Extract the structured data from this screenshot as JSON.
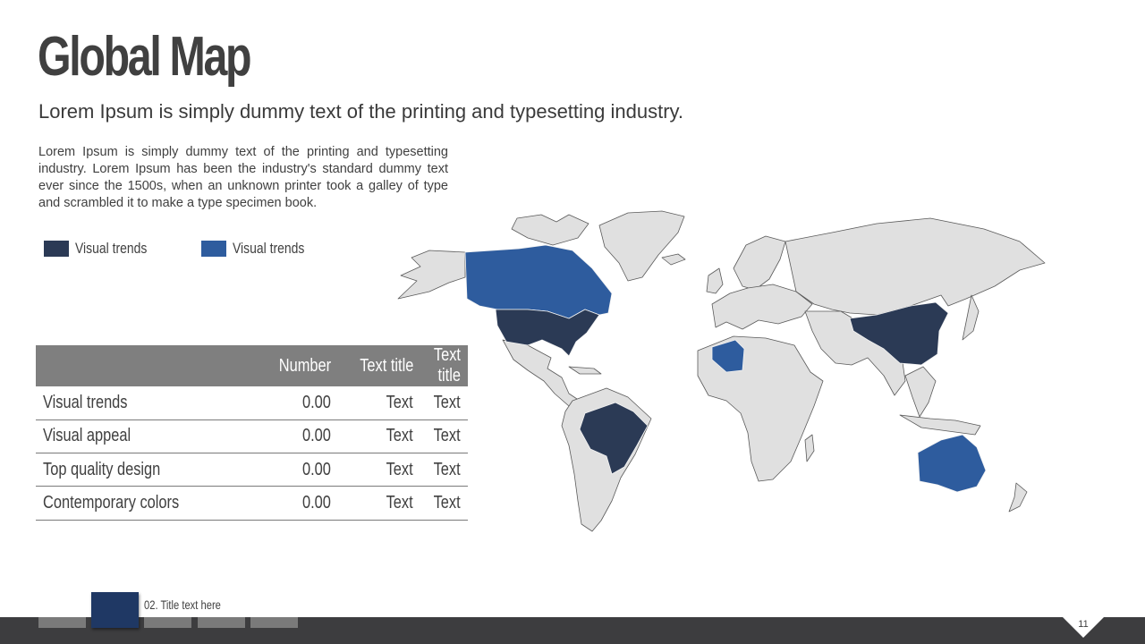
{
  "header": {
    "title": "Global Map",
    "subtitle": "Lorem Ipsum is simply dummy text of the printing and typesetting industry."
  },
  "body_text": "Lorem Ipsum is simply dummy text of the printing and typesetting industry. Lorem Ipsum has been the industry's standard dummy text ever since the 1500s, when an unknown printer took a galley of type and scrambled it to make a type specimen book.",
  "legend": [
    {
      "label": "Visual trends",
      "color": "#2b3a55"
    },
    {
      "label": "Visual trends",
      "color": "#2e5c9e"
    }
  ],
  "table": {
    "headers": [
      "",
      "Number",
      "Text title",
      "Text title"
    ],
    "rows": [
      [
        "Visual trends",
        "0.00",
        "Text",
        "Text"
      ],
      [
        "Visual appeal",
        "0.00",
        "Text",
        "Text"
      ],
      [
        "Top quality design",
        "0.00",
        "Text",
        "Text"
      ],
      [
        "Contemporary colors",
        "0.00",
        "Text",
        "Text"
      ]
    ]
  },
  "map": {
    "base_color": "#e0e0e0",
    "outline_color": "#5a5a5a",
    "highlighted_dark": [
      "United States",
      "China",
      "Brazil"
    ],
    "highlighted_blue": [
      "Canada",
      "Algeria",
      "Australia"
    ]
  },
  "footer": {
    "section_label": "02. Title text here",
    "page_number": "11",
    "bar_color": "#3d3d3f",
    "active_tab_color": "#1f3864"
  }
}
